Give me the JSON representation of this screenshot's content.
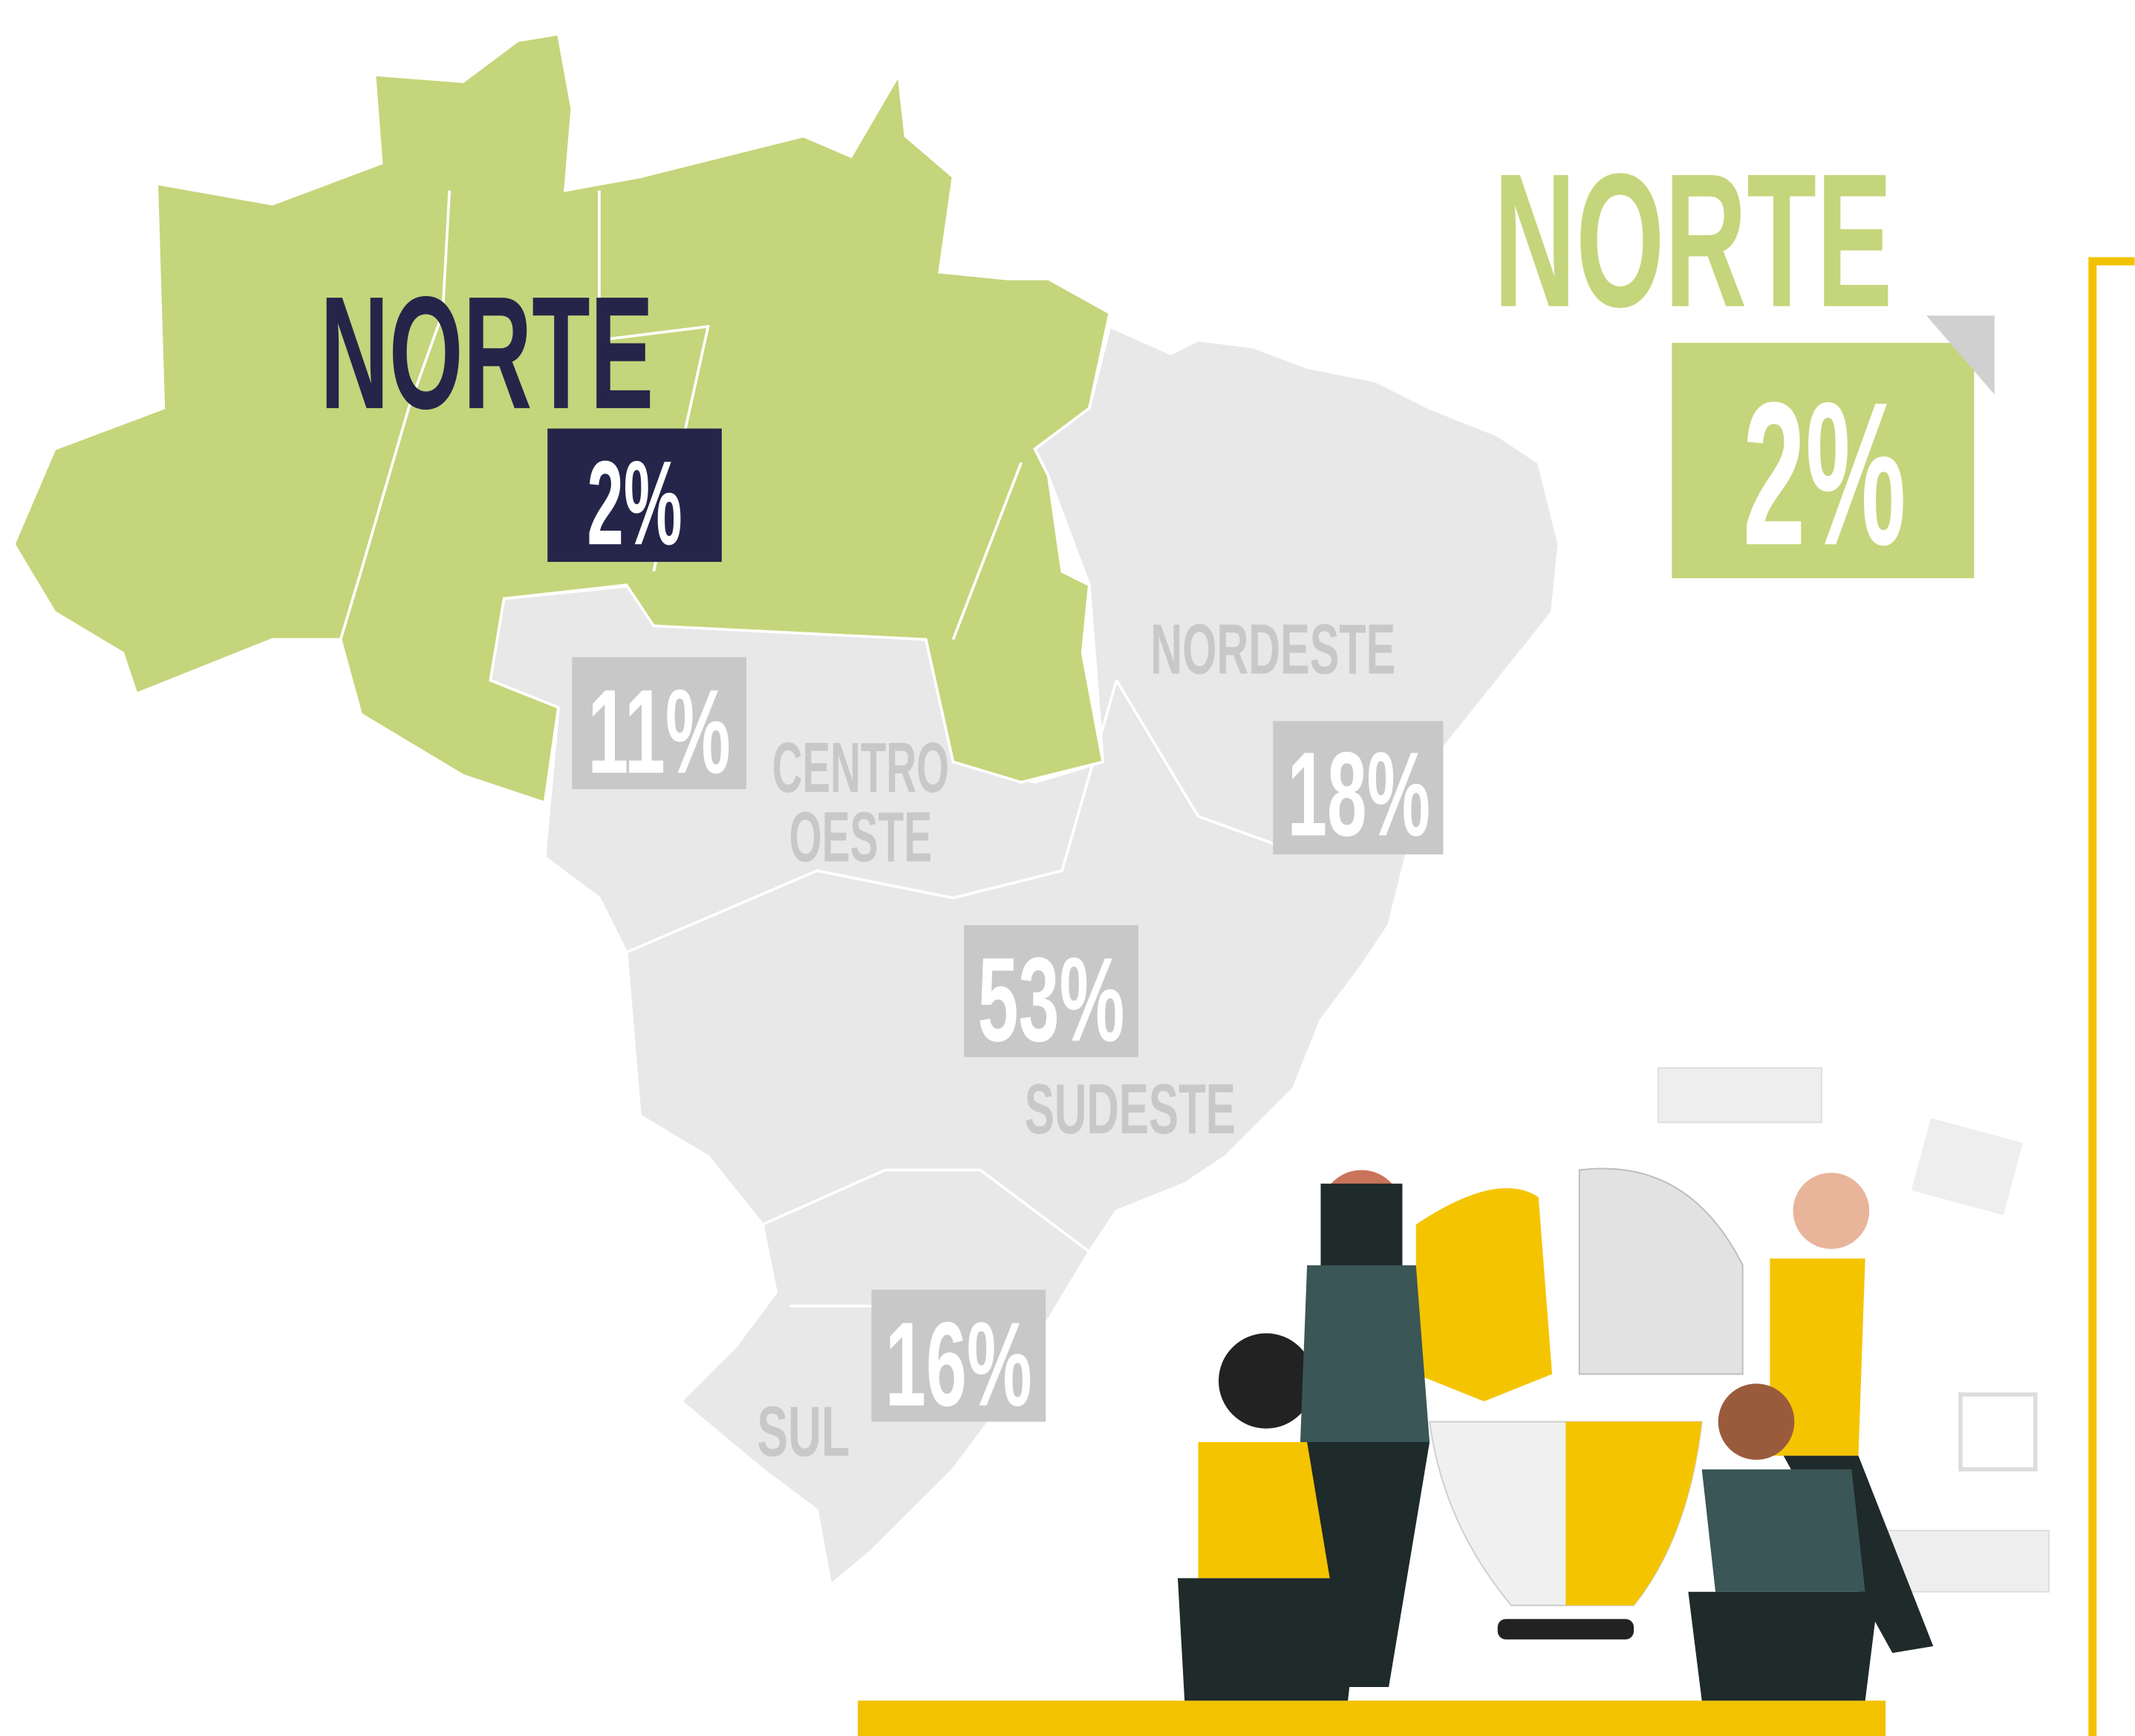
{
  "map": {
    "regions": [
      {
        "name": [
          "NORTE"
        ],
        "value": "2%"
      },
      {
        "name": [
          "CENTRO",
          "OESTE"
        ],
        "value": "11%"
      },
      {
        "name": [
          "NORDESTE"
        ],
        "value": "18%"
      },
      {
        "name": [
          "SUDESTE"
        ],
        "value": "53%"
      },
      {
        "name": [
          "SUL"
        ],
        "value": "16%"
      }
    ],
    "highlight": {
      "name": "NORTE",
      "value": "2%"
    }
  }
}
